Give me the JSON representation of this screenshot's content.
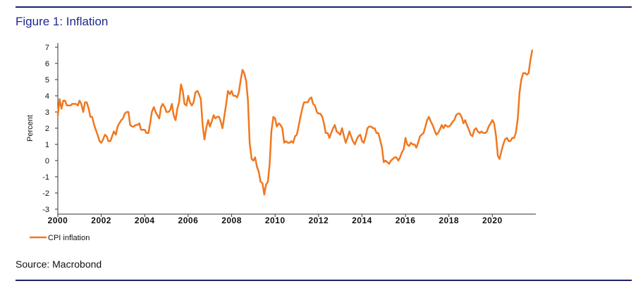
{
  "figure": {
    "title": "Figure 1: Inflation",
    "source": "Source: Macrobond",
    "rule_color": "#1f1f6e",
    "title_color": "#1e2a8c"
  },
  "chart_data": {
    "type": "line",
    "title": "",
    "xlabel": "",
    "ylabel": "Percent",
    "xlim": [
      2000,
      2022
    ],
    "ylim": [
      -3,
      7
    ],
    "x_ticks": [
      "2000",
      "2002",
      "2004",
      "2006",
      "2008",
      "2010",
      "2012",
      "2014",
      "2016",
      "2018",
      "2020"
    ],
    "x_tick_values": [
      2000,
      2002,
      2004,
      2006,
      2008,
      2010,
      2012,
      2014,
      2016,
      2018,
      2020
    ],
    "y_ticks": [
      -3,
      -2,
      -1,
      0,
      1,
      2,
      3,
      4,
      5,
      6,
      7
    ],
    "grid": false,
    "legend": "bottom-left",
    "series": [
      {
        "name": "CPI inflation",
        "color": "#f07820",
        "x": [
          2000.0,
          2000.08,
          2000.17,
          2000.25,
          2000.33,
          2000.42,
          2000.5,
          2000.58,
          2000.67,
          2000.75,
          2000.83,
          2000.92,
          2001.0,
          2001.08,
          2001.17,
          2001.25,
          2001.33,
          2001.42,
          2001.5,
          2001.58,
          2001.67,
          2001.75,
          2001.83,
          2001.92,
          2002.0,
          2002.08,
          2002.17,
          2002.25,
          2002.33,
          2002.42,
          2002.5,
          2002.58,
          2002.67,
          2002.75,
          2002.83,
          2002.92,
          2003.0,
          2003.08,
          2003.17,
          2003.25,
          2003.33,
          2003.42,
          2003.5,
          2003.58,
          2003.67,
          2003.75,
          2003.83,
          2003.92,
          2004.0,
          2004.08,
          2004.17,
          2004.25,
          2004.33,
          2004.42,
          2004.5,
          2004.58,
          2004.67,
          2004.75,
          2004.83,
          2004.92,
          2005.0,
          2005.08,
          2005.17,
          2005.25,
          2005.33,
          2005.42,
          2005.5,
          2005.58,
          2005.67,
          2005.75,
          2005.83,
          2005.92,
          2006.0,
          2006.08,
          2006.17,
          2006.25,
          2006.33,
          2006.42,
          2006.5,
          2006.58,
          2006.67,
          2006.75,
          2006.83,
          2006.92,
          2007.0,
          2007.08,
          2007.17,
          2007.25,
          2007.33,
          2007.42,
          2007.5,
          2007.58,
          2007.67,
          2007.75,
          2007.83,
          2007.92,
          2008.0,
          2008.08,
          2008.17,
          2008.25,
          2008.33,
          2008.42,
          2008.5,
          2008.58,
          2008.67,
          2008.75,
          2008.83,
          2008.92,
          2009.0,
          2009.08,
          2009.17,
          2009.25,
          2009.33,
          2009.42,
          2009.5,
          2009.58,
          2009.67,
          2009.75,
          2009.83,
          2009.92,
          2010.0,
          2010.08,
          2010.17,
          2010.25,
          2010.33,
          2010.42,
          2010.5,
          2010.58,
          2010.67,
          2010.75,
          2010.83,
          2010.92,
          2011.0,
          2011.08,
          2011.17,
          2011.25,
          2011.33,
          2011.42,
          2011.5,
          2011.58,
          2011.67,
          2011.75,
          2011.83,
          2011.92,
          2012.0,
          2012.08,
          2012.17,
          2012.25,
          2012.33,
          2012.42,
          2012.5,
          2012.58,
          2012.67,
          2012.75,
          2012.83,
          2012.92,
          2013.0,
          2013.08,
          2013.17,
          2013.25,
          2013.33,
          2013.42,
          2013.5,
          2013.58,
          2013.67,
          2013.75,
          2013.83,
          2013.92,
          2014.0,
          2014.08,
          2014.17,
          2014.25,
          2014.33,
          2014.42,
          2014.5,
          2014.58,
          2014.67,
          2014.75,
          2014.83,
          2014.92,
          2015.0,
          2015.08,
          2015.17,
          2015.25,
          2015.33,
          2015.42,
          2015.5,
          2015.58,
          2015.67,
          2015.75,
          2015.83,
          2015.92,
          2016.0,
          2016.08,
          2016.17,
          2016.25,
          2016.33,
          2016.42,
          2016.5,
          2016.58,
          2016.67,
          2016.75,
          2016.83,
          2016.92,
          2017.0,
          2017.08,
          2017.17,
          2017.25,
          2017.33,
          2017.42,
          2017.5,
          2017.58,
          2017.67,
          2017.75,
          2017.83,
          2017.92,
          2018.0,
          2018.08,
          2018.17,
          2018.25,
          2018.33,
          2018.42,
          2018.5,
          2018.58,
          2018.67,
          2018.75,
          2018.83,
          2018.92,
          2019.0,
          2019.08,
          2019.17,
          2019.25,
          2019.33,
          2019.42,
          2019.5,
          2019.58,
          2019.67,
          2019.75,
          2019.83,
          2019.92,
          2020.0,
          2020.08,
          2020.17,
          2020.25,
          2020.33,
          2020.42,
          2020.5,
          2020.58,
          2020.67,
          2020.75,
          2020.83,
          2020.92,
          2021.0,
          2021.08,
          2021.17,
          2021.25,
          2021.33,
          2021.42,
          2021.5,
          2021.58,
          2021.67,
          2021.75,
          2021.83
        ],
        "y": [
          2.8,
          3.8,
          3.2,
          3.7,
          3.7,
          3.4,
          3.4,
          3.4,
          3.5,
          3.5,
          3.5,
          3.4,
          3.7,
          3.5,
          3.0,
          3.6,
          3.6,
          3.2,
          2.7,
          2.7,
          2.2,
          1.9,
          1.6,
          1.2,
          1.1,
          1.3,
          1.6,
          1.5,
          1.2,
          1.2,
          1.5,
          1.8,
          1.6,
          2.1,
          2.3,
          2.5,
          2.6,
          2.9,
          3.0,
          3.0,
          2.2,
          2.1,
          2.1,
          2.2,
          2.2,
          2.3,
          1.9,
          1.9,
          1.9,
          1.7,
          1.7,
          2.3,
          3.0,
          3.3,
          3.0,
          2.8,
          2.6,
          3.3,
          3.5,
          3.3,
          3.0,
          3.0,
          3.1,
          3.5,
          2.8,
          2.5,
          3.2,
          3.6,
          4.7,
          4.3,
          3.5,
          3.4,
          4.0,
          3.6,
          3.4,
          3.6,
          4.2,
          4.3,
          4.1,
          3.8,
          2.1,
          1.3,
          2.0,
          2.5,
          2.1,
          2.4,
          2.8,
          2.6,
          2.7,
          2.7,
          2.4,
          2.0,
          2.8,
          3.5,
          4.3,
          4.1,
          4.3,
          4.0,
          4.0,
          3.9,
          4.2,
          5.0,
          5.6,
          5.4,
          4.9,
          3.7,
          1.1,
          0.1,
          0.0,
          0.2,
          -0.4,
          -0.7,
          -1.3,
          -1.4,
          -2.1,
          -1.5,
          -1.3,
          -0.2,
          1.8,
          2.7,
          2.6,
          2.1,
          2.3,
          2.2,
          2.0,
          1.1,
          1.2,
          1.1,
          1.1,
          1.2,
          1.1,
          1.5,
          1.6,
          2.1,
          2.7,
          3.2,
          3.6,
          3.6,
          3.6,
          3.8,
          3.9,
          3.5,
          3.4,
          3.0,
          2.9,
          2.9,
          2.7,
          2.3,
          1.7,
          1.7,
          1.4,
          1.7,
          2.0,
          2.2,
          1.8,
          1.7,
          1.6,
          2.0,
          1.5,
          1.1,
          1.4,
          1.8,
          1.5,
          1.2,
          1.0,
          1.3,
          1.5,
          1.6,
          1.2,
          1.1,
          1.5,
          2.0,
          2.1,
          2.1,
          2.0,
          2.0,
          1.7,
          1.7,
          1.3,
          0.8,
          -0.1,
          0.0,
          -0.1,
          -0.2,
          0.0,
          0.1,
          0.2,
          0.2,
          0.0,
          0.2,
          0.5,
          0.7,
          1.4,
          1.0,
          0.9,
          1.1,
          1.0,
          1.0,
          0.8,
          1.1,
          1.5,
          1.6,
          1.7,
          2.1,
          2.5,
          2.7,
          2.4,
          2.2,
          1.9,
          1.6,
          1.7,
          1.9,
          2.2,
          2.0,
          2.2,
          2.1,
          2.1,
          2.2,
          2.4,
          2.5,
          2.8,
          2.9,
          2.9,
          2.7,
          2.3,
          2.5,
          2.2,
          1.9,
          1.6,
          1.5,
          1.9,
          2.0,
          1.8,
          1.7,
          1.8,
          1.7,
          1.7,
          1.8,
          2.1,
          2.3,
          2.5,
          2.3,
          1.5,
          0.3,
          0.1,
          0.6,
          1.0,
          1.3,
          1.4,
          1.2,
          1.2,
          1.4,
          1.4,
          1.7,
          2.6,
          4.2,
          5.0,
          5.4,
          5.4,
          5.3,
          5.4,
          6.2,
          6.8
        ]
      }
    ]
  }
}
